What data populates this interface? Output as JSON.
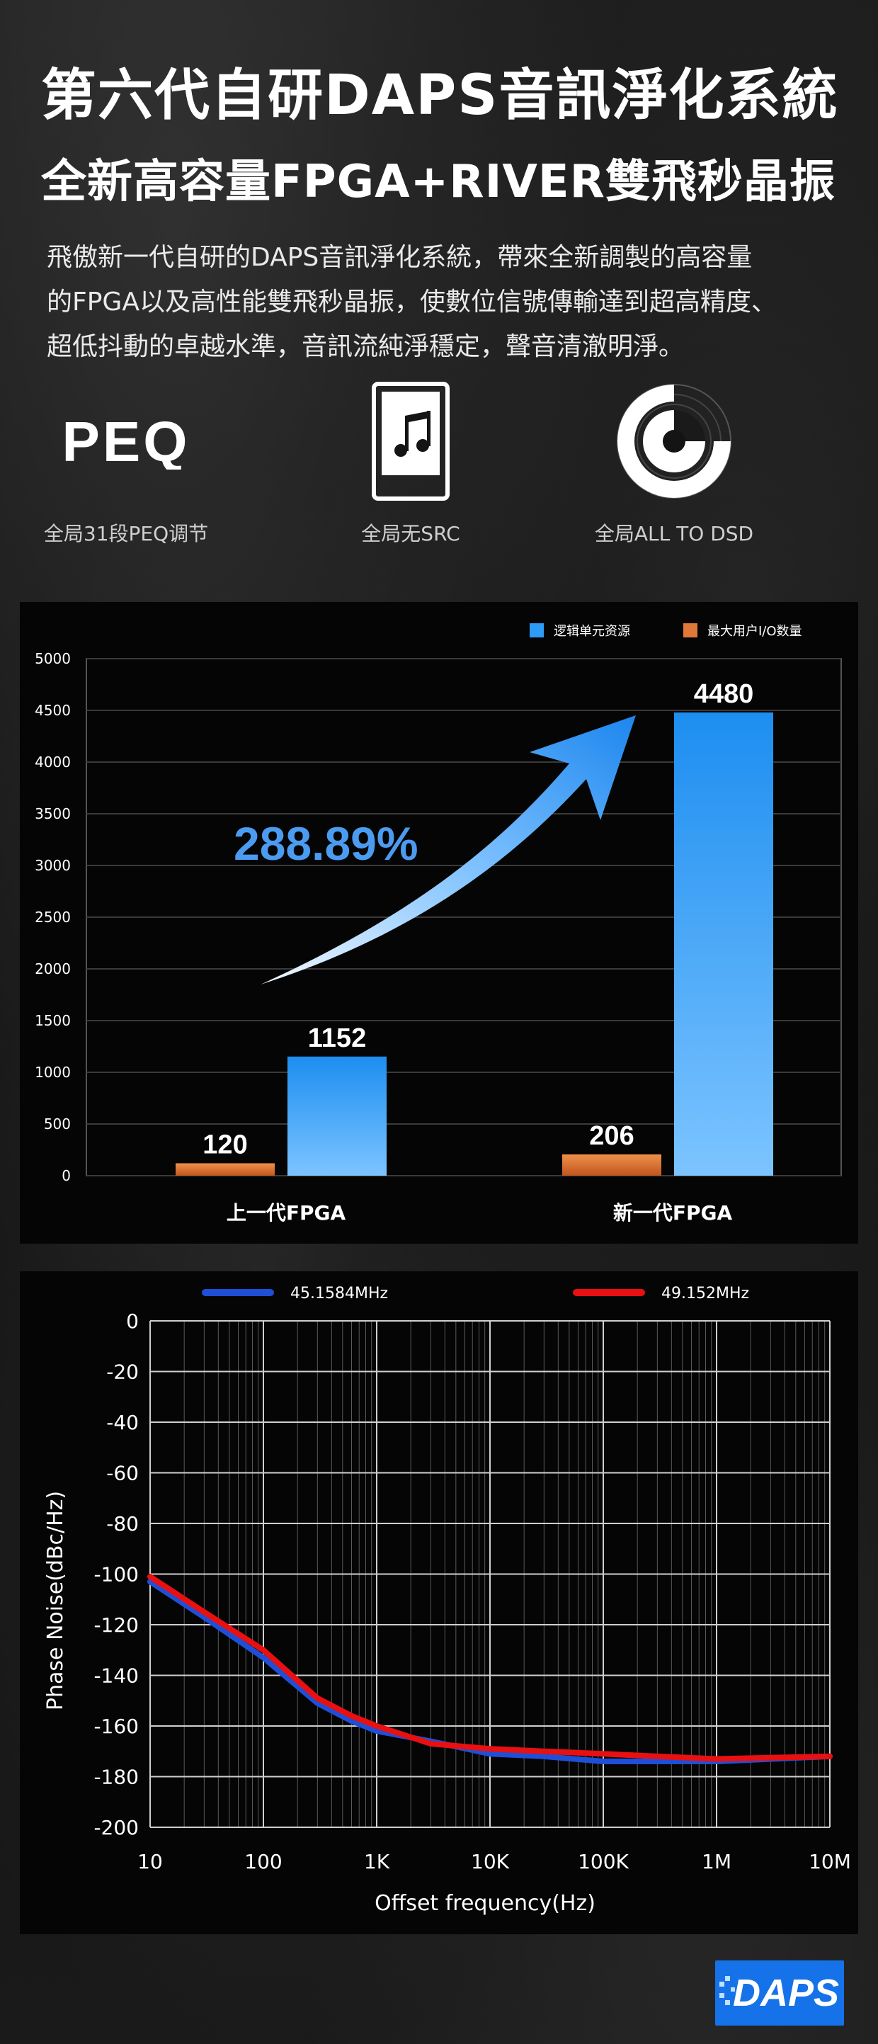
{
  "header": {
    "title": "第六代自研DAPS音訊淨化系統",
    "subtitle": "全新高容量FPGA+RIVER雙飛秒晶振",
    "description_lines": [
      "飛傲新一代自研的DAPS音訊淨化系統，帶來全新調製的高容量",
      "的FPGA以及高性能雙飛秒晶振，使數位信號傳輸達到超高精度、",
      "超低抖動的卓越水準，音訊流純淨穩定，聲音清澈明淨。"
    ]
  },
  "features": [
    {
      "icon": "peq-logo-icon",
      "logo_text": "PEQ",
      "label": "全局31段PEQ调节"
    },
    {
      "icon": "music-player-icon",
      "label": "全局无SRC"
    },
    {
      "icon": "dsd-disc-icon",
      "label": "全局ALL TO DSD"
    }
  ],
  "chart_data": [
    {
      "type": "bar",
      "categories": [
        "上一代FPGA",
        "新一代FPGA"
      ],
      "series": [
        {
          "name": "最大用户I/O数量",
          "values": [
            120,
            206
          ],
          "color": "#e0783a"
        },
        {
          "name": "逻辑单元资源",
          "values": [
            1152,
            4480
          ],
          "color": "#2d9cf5"
        }
      ],
      "ylim": [
        0,
        5000
      ],
      "yticks": [
        0,
        500,
        1000,
        1500,
        2000,
        2500,
        3000,
        3500,
        4000,
        4500,
        5000
      ],
      "annotation": "288.89%",
      "legend": "top-right",
      "grid": true
    },
    {
      "type": "line",
      "xscale": "log",
      "xlabel": "Offset frequency(Hz)",
      "ylabel": "Phase Noise(dBc/Hz)",
      "xlim": [
        10,
        10000000
      ],
      "ylim": [
        -200,
        0
      ],
      "xticks": [
        10,
        100,
        1000,
        10000,
        100000,
        1000000,
        10000000
      ],
      "xtick_labels": [
        "10",
        "100",
        "1K",
        "10K",
        "100K",
        "1M",
        "10M"
      ],
      "yticks": [
        0,
        -20,
        -40,
        -60,
        -80,
        -100,
        -120,
        -140,
        -160,
        -180,
        -200
      ],
      "legend": "top",
      "grid": true,
      "series": [
        {
          "name": "45.1584MHz",
          "color": "#1f4fd6",
          "x": [
            10,
            30,
            100,
            300,
            600,
            1000,
            3000,
            10000,
            30000,
            100000,
            300000,
            1000000,
            10000000
          ],
          "y": [
            -103,
            -117,
            -133,
            -151,
            -158,
            -162,
            -166,
            -171,
            -172,
            -174,
            -174,
            -174,
            -172
          ]
        },
        {
          "name": "49.152MHz",
          "color": "#e81010",
          "x": [
            10,
            30,
            100,
            300,
            600,
            1000,
            3000,
            10000,
            30000,
            100000,
            300000,
            1000000,
            10000000
          ],
          "y": [
            -101,
            -115,
            -130,
            -149,
            -156,
            -160,
            -167,
            -169,
            -170,
            -171,
            -172,
            -173,
            -172
          ]
        }
      ]
    }
  ],
  "brand": {
    "logo_text": "DAPS",
    "color": "#1672e8"
  }
}
